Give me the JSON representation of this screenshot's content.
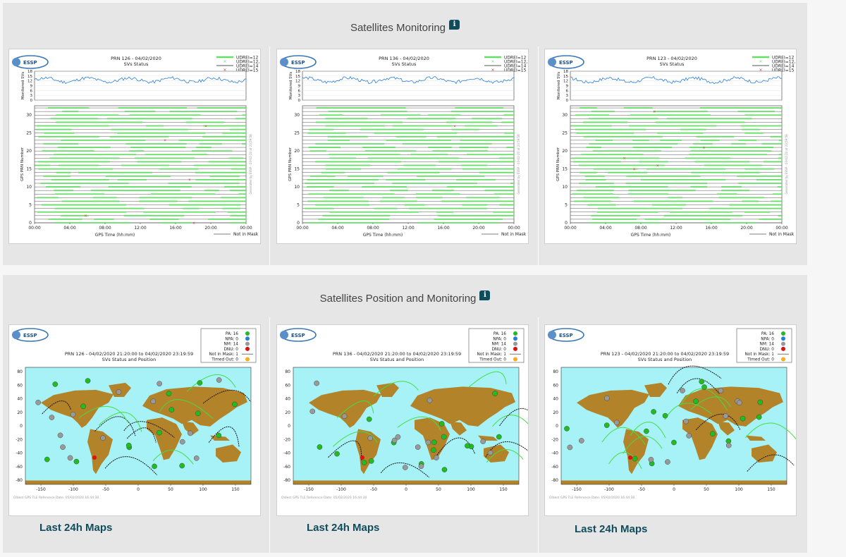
{
  "monitoring": {
    "title": "Satellites Monitoring",
    "info_label": "i",
    "charts": [
      {
        "logo": "ESSP",
        "title": "PRN 126 - 04/02/2020",
        "subtitle": "SVs Status",
        "side_text": "Generated by ESSP - 03-02-20 at 23:59:58"
      },
      {
        "logo": "ESSP",
        "title": "PRN 136 - 04/02/2020",
        "subtitle": "SVs Status",
        "side_text": "Generated by ESSP - 03-02-20 at 23:59:58"
      },
      {
        "logo": "ESSP",
        "title": "PRN 123 - 04/02/2020",
        "subtitle": "SVs Status",
        "side_text": "Generated by ESSP - 03-02-20 at 23:59:58"
      }
    ],
    "legend": [
      "UDREI=12",
      "UDREI=12,13",
      "UDREI=14",
      "UDREI=15"
    ],
    "top_ylabel": "Monitored SVs",
    "top_yticks": [
      "18",
      "15",
      "12",
      "9",
      "6",
      "3",
      "0"
    ],
    "main_ylabel": "GPS PRN Number",
    "main_yticks": [
      "30",
      "25",
      "20",
      "15",
      "10",
      "5",
      "0"
    ],
    "xticks": [
      "00:00",
      "04:00",
      "08:00",
      "12:00",
      "16:00",
      "20:00",
      "00:00"
    ],
    "xlabel": "GPS Time (hh:mm)",
    "not_in_mask": "Not in Mask",
    "colors": {
      "available": "#66dd66",
      "not_in_mask": "#555555",
      "udrei15": "#dd3333",
      "monitored": "#2a7fd4"
    }
  },
  "position": {
    "title": "Satellites Position and Monitoring",
    "info_label": "i",
    "charts": [
      {
        "logo": "ESSP",
        "title": "PRN 126 - 04/02/2020 21:20:00 to 04/02/2020 23:19:59",
        "subtitle": "SVs Status and Position",
        "footer": "Oldest GPS TLE Reference Date: 05/02/2020 16:44:30"
      },
      {
        "logo": "ESSP",
        "title": "PRN 136 - 04/02/2020 21:20:00 to 04/02/2020 23:19:59",
        "subtitle": "SVs Status and Position",
        "footer": "Oldest GPS TLE Reference Date: 05/02/2020 16:44:30"
      },
      {
        "logo": "ESSP",
        "title": "PRN 123 - 04/02/2020 21:20:00 to 04/02/2020 23:19:59",
        "subtitle": "SVs Status and Position",
        "footer": "Oldest GPS TLE Reference Date: 05/02/2020 16:44:30"
      }
    ],
    "legend": [
      "PA: 16",
      "NPA: 0",
      "NM: 14",
      "DNU: 0",
      "Not in Mask: 1",
      "Timed Out: 0"
    ],
    "legend_colors": [
      "#22bb22",
      "#2a7fd4",
      "#999999",
      "#dd1111",
      "#555555",
      "#f0b020"
    ],
    "yticks": [
      "80",
      "60",
      "40",
      "20",
      "0",
      "-20",
      "-40",
      "-60",
      "-80"
    ],
    "xticks": [
      "-150",
      "-100",
      "-50",
      "0",
      "50",
      "100",
      "150"
    ],
    "colors": {
      "ocean": "#a6f2f6",
      "land": "#b3832a"
    },
    "link_label": "Last 24h Maps"
  }
}
